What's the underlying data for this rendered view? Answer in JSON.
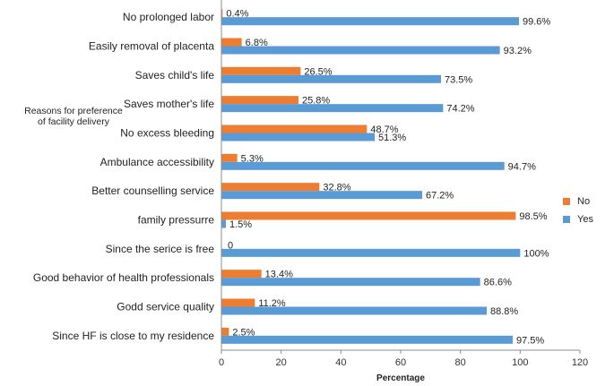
{
  "chart_data": {
    "type": "bar",
    "orientation": "horizontal",
    "categories": [
      "No prolonged labor",
      "Easily removal of placenta",
      "Saves child's life",
      "Saves mother's life",
      "No excess bleeding",
      "Ambulance accessibility",
      "Better counselling service",
      "family pressurre",
      "Since the serice is free",
      "Good behavior of health professionals",
      "Godd service quality",
      "Since HF is close to my residence"
    ],
    "series": [
      {
        "name": "No",
        "color": "#ED7D31",
        "values": [
          0.4,
          6.8,
          26.5,
          25.8,
          48.7,
          5.3,
          32.8,
          98.5,
          0,
          13.4,
          11.2,
          2.5
        ],
        "labels": [
          "0.4%",
          "6.8%",
          "26.5%",
          "25.8%",
          "48.7%",
          "5.3%",
          "32.8%",
          "98.5%",
          "0",
          "13.4%",
          "11.2%",
          "2.5%"
        ]
      },
      {
        "name": "Yes",
        "color": "#5B9BD5",
        "values": [
          99.6,
          93.2,
          73.5,
          74.2,
          51.3,
          94.7,
          67.2,
          1.5,
          100,
          86.6,
          88.8,
          97.5
        ],
        "labels": [
          "99.6%",
          "93.2%",
          "73.5%",
          "74.2%",
          "51.3%",
          "94.7%",
          "67.2%",
          "1.5%",
          "100%",
          "86.6%",
          "88.8%",
          "97.5%"
        ]
      }
    ],
    "xlabel": "Percentage",
    "ylabel": "Reasons for preference of facility delivery",
    "ylabel_lines": [
      "Reasons for preference",
      "of facility delivery"
    ],
    "xlim": [
      0,
      120
    ],
    "xticks": [
      0,
      20,
      40,
      60,
      80,
      100,
      120
    ],
    "grid": false,
    "legend_position": "right"
  }
}
